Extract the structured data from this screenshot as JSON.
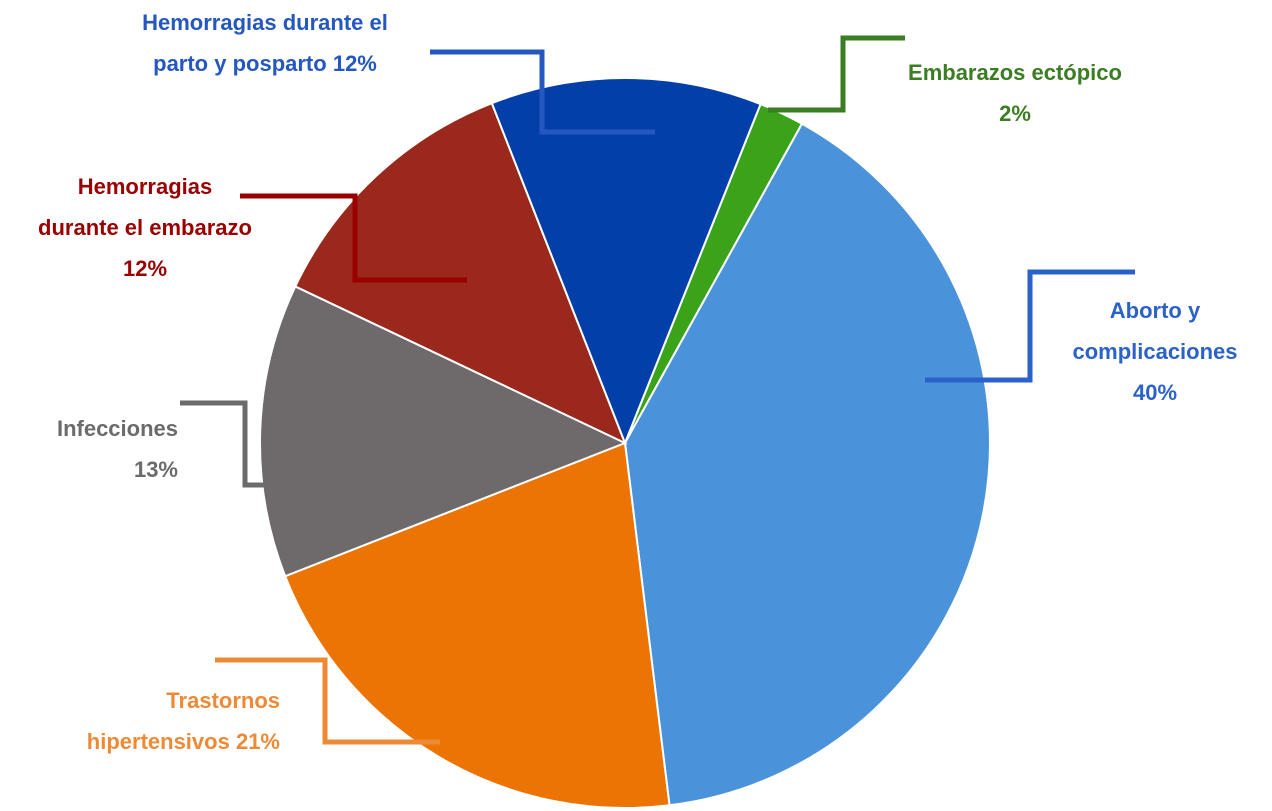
{
  "chart_data": {
    "type": "pie",
    "categories": [
      "Embarazos ectópico",
      "Aborto y complicaciones",
      "Trastornos hipertensivos",
      "Infecciones",
      "Hemorragias durante el embarazo",
      "Hemorragias durante el parto y posparto"
    ],
    "values": [
      2,
      40,
      21,
      13,
      12,
      12
    ],
    "value_labels": [
      "2%",
      "40%",
      "21%",
      "13%",
      "12%",
      "12%"
    ],
    "colors": [
      "#3aa31a",
      "#4a93db",
      "#ec7405",
      "#6e6a6b",
      "#9a281c",
      "#033fa8"
    ],
    "label_colors": [
      "#3b7d22",
      "#2a62c9",
      "#ee8a35",
      "#6b6b6b",
      "#9b0000",
      "#2457c0"
    ]
  }
}
